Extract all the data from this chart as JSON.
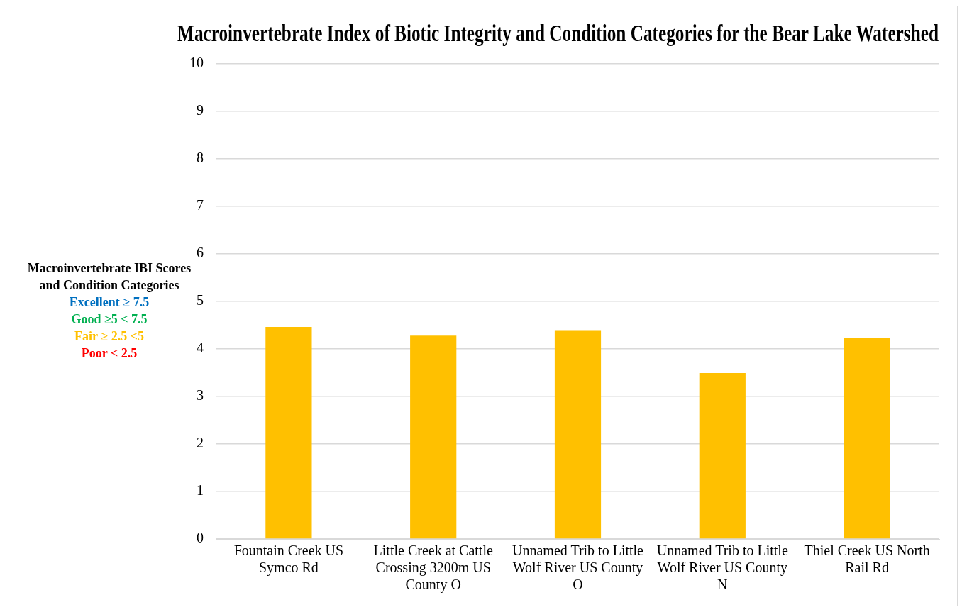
{
  "chart_data": {
    "type": "bar",
    "title": "Macroinvertebrate Index of Biotic Integrity and Condition Categories for the Bear Lake Watershed",
    "ylabel": "Macroinvertebrate IBI Scores and Condition Categories",
    "annotations": [
      "Excellent ≥ 7.5",
      "Good ≥5 < 7.5",
      "Fair ≥ 2.5 <5",
      "Poor < 2.5"
    ],
    "categories": [
      "Fountain Creek US Symco Rd",
      "Little Creek at Cattle Crossing 3200m US County O",
      "Unnamed Trib to Little Wolf River US County O",
      "Unnamed Trib to Little Wolf River US County N",
      "Thiel Creek US North Rail Rd"
    ],
    "values": [
      4.46,
      4.28,
      4.38,
      3.49,
      4.23
    ],
    "color": "#ffc000",
    "ylim": [
      0,
      10
    ],
    "yticks": [
      0,
      1,
      2,
      3,
      4,
      5,
      6,
      7,
      8,
      9,
      10
    ],
    "grid": "y"
  }
}
